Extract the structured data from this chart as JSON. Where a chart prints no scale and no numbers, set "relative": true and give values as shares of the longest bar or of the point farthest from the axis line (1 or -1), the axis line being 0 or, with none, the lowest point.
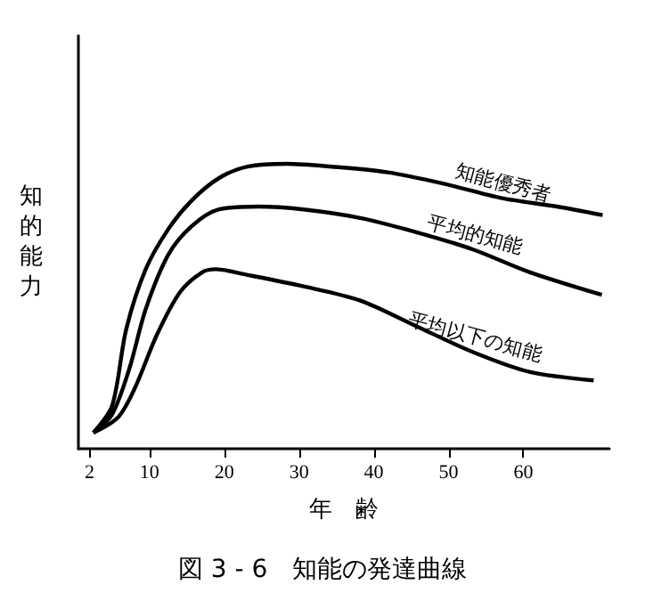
{
  "chart_data": {
    "type": "line",
    "relative": true,
    "title": "図 3 - 6　知能の発達曲線",
    "xlabel": "年　齢",
    "ylabel": "知的能力",
    "xlim": [
      0.5,
      71.5
    ],
    "xticks": [
      2,
      10,
      20,
      30,
      40,
      50,
      60
    ],
    "grid": false,
    "marker": "none",
    "line_style": "solid",
    "legend": false,
    "series": [
      {
        "name": "知能優秀者",
        "color": "#000000",
        "x": [
          2.5,
          5,
          6.9,
          9.5,
          12.5,
          15.6,
          19.3,
          23.1,
          28.4,
          34.4,
          41.9,
          49.4,
          57,
          64.5,
          70.6
        ],
        "values": [
          0.056,
          0.15,
          0.42,
          0.63,
          0.77,
          0.87,
          0.95,
          0.99,
          1,
          0.99,
          0.97,
          0.93,
          0.88,
          0.85,
          0.82
        ]
      },
      {
        "name": "平均的知能",
        "color": "#000000",
        "x": [
          2.5,
          5,
          7.3,
          9.5,
          12.5,
          15.6,
          19.3,
          24.6,
          30.6,
          38.2,
          45.7,
          53.2,
          60.8,
          70.5
        ],
        "values": [
          0.056,
          0.12,
          0.28,
          0.49,
          0.68,
          0.78,
          0.84,
          0.85,
          0.84,
          0.81,
          0.76,
          0.7,
          0.62,
          0.54
        ]
      },
      {
        "name": "平均以下の知能",
        "color": "#000000",
        "x": [
          2.5,
          5.8,
          8,
          11,
          14.1,
          17.1,
          18.9,
          23.1,
          30.6,
          38.2,
          45.7,
          53.2,
          60.8,
          69.4
        ],
        "values": [
          0.056,
          0.11,
          0.21,
          0.4,
          0.55,
          0.62,
          0.63,
          0.61,
          0.57,
          0.52,
          0.43,
          0.34,
          0.27,
          0.24
        ]
      }
    ]
  }
}
